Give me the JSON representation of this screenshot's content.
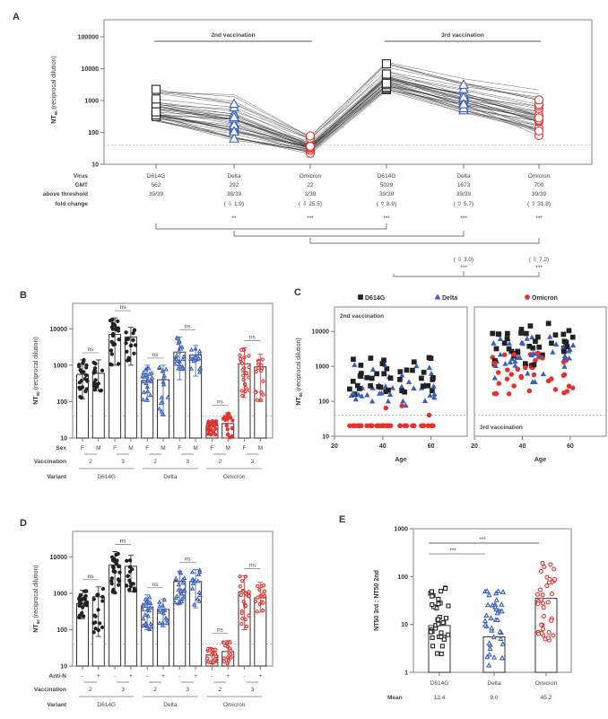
{
  "colors": {
    "D614G": "#222222",
    "Delta": "#3b5fc0",
    "Omicron": "#e8312f",
    "fold_up": "#c0267a",
    "threshold": "#bbbbbb"
  },
  "chart_data": [
    {
      "panel": "A",
      "type": "line",
      "ylabel": "NT50 (reciprocal dilution)",
      "yscale": "log",
      "ylim": [
        10,
        100000
      ],
      "yticks": [
        "10",
        "100",
        "1000",
        "10000",
        "100000"
      ],
      "threshold": 40,
      "groups": [
        {
          "label": "2nd vaccination",
          "columns": [
            0,
            1,
            2
          ]
        },
        {
          "label": "3rd vaccination",
          "columns": [
            3,
            4,
            5
          ]
        }
      ],
      "row_labels": [
        "Virus",
        "GMT",
        "above threshold",
        "fold change"
      ],
      "columns": [
        {
          "virus": "D614G",
          "gmt": "562",
          "above": "39/39",
          "fold": "",
          "fold_dir": "",
          "marker": "square",
          "color_key": "D614G",
          "range": [
            150,
            3000
          ]
        },
        {
          "virus": "Delta",
          "gmt": "292",
          "above": "38/39",
          "fold": "( ⇩ 1.9)",
          "fold_dir": "down",
          "marker": "triangle",
          "color_key": "Delta",
          "range": [
            40,
            2000
          ]
        },
        {
          "virus": "Omicron",
          "gmt": "22",
          "above": "3/39",
          "fold": "( ⇩ 25.5)",
          "fold_dir": "down",
          "marker": "circle",
          "color_key": "Omicron",
          "range": [
            20,
            90
          ]
        },
        {
          "virus": "D614G",
          "gmt": "5029",
          "above": "39/39",
          "fold": "( ⇧ 8.9)",
          "fold_dir": "up",
          "marker": "square",
          "color_key": "D614G",
          "range": [
            1500,
            20000
          ]
        },
        {
          "virus": "Delta",
          "gmt": "1673",
          "above": "39/39",
          "fold": "( ⇧ 5.7)",
          "fold_dir": "up",
          "marker": "triangle",
          "color_key": "Delta",
          "range": [
            350,
            6000
          ]
        },
        {
          "virus": "Omicron",
          "gmt": "700",
          "above": "39/39",
          "fold": "( ⇧ 31.8)",
          "fold_dir": "up",
          "marker": "circle",
          "color_key": "Omicron",
          "range": [
            55,
            4000
          ]
        }
      ],
      "comparisons": [
        {
          "from": 0,
          "to": 3,
          "sig": "***"
        },
        {
          "from": 0,
          "to": 1,
          "sig": "**"
        },
        {
          "from": 1,
          "to": 4,
          "sig": "***"
        },
        {
          "from": 2,
          "to": 5,
          "sig": "***"
        },
        {
          "from": 0,
          "to": 2,
          "sig": "***"
        }
      ],
      "third_dose_comparisons": [
        {
          "column": 4,
          "fold": "( ⇩ 3.0)",
          "sig": "***"
        },
        {
          "column": 5,
          "fold": "( ⇩ 7.2)",
          "sig": "***"
        }
      ]
    },
    {
      "panel": "B",
      "type": "bar",
      "ylabel": "NT50 (reciprocal dilution)",
      "yscale": "log",
      "ylim": [
        10,
        50000
      ],
      "yticks": [
        "10",
        "100",
        "1000",
        "10000"
      ],
      "threshold": 40,
      "row_labels": [
        "Sex",
        "Vaccination",
        "Variant"
      ],
      "categories": [
        "F",
        "M",
        "F",
        "M",
        "F",
        "M",
        "F",
        "M",
        "F",
        "M",
        "F",
        "M"
      ],
      "vaccination": [
        "2",
        "3",
        "2",
        "3",
        "2",
        "3"
      ],
      "variants": [
        "D614G",
        "Delta",
        "Omicron"
      ],
      "bar_values": [
        560,
        600,
        7000,
        6000,
        380,
        400,
        2300,
        1900,
        22,
        25,
        1100,
        900
      ],
      "err_low": [
        120,
        200,
        1000,
        1000,
        100,
        40,
        400,
        500,
        12,
        10,
        130,
        100
      ],
      "err_high": [
        1400,
        1400,
        20000,
        11000,
        1000,
        1000,
        6000,
        3500,
        30,
        50,
        3000,
        2000
      ],
      "ns_labels": [
        "ns",
        "ns",
        "ns",
        "ns",
        "ns",
        "ns"
      ]
    },
    {
      "panel": "C",
      "type": "scatter",
      "ylabel": "NT50 (reciprocal dilution)",
      "xlabel": "Age",
      "yscale": "log",
      "ylim": [
        10,
        50000
      ],
      "xlim": [
        20,
        75
      ],
      "xticks": [
        "20",
        "40",
        "60"
      ],
      "yticks": [
        "10",
        "100",
        "1000",
        "10000"
      ],
      "threshold": 40,
      "legend": [
        "D614G",
        "Delta",
        "Omicron"
      ],
      "legend_position": "top",
      "subpanels": [
        {
          "label": "2nd vaccination",
          "label_position": "top-left"
        },
        {
          "label": "3rd vaccination",
          "label_position": "bottom-left"
        }
      ]
    },
    {
      "panel": "D",
      "type": "bar",
      "ylabel": "NT50 (reciprocal dilution)",
      "yscale": "log",
      "ylim": [
        10,
        50000
      ],
      "yticks": [
        "10",
        "100",
        "1000",
        "10000"
      ],
      "threshold": 40,
      "row_labels": [
        "Anti-N",
        "Vaccination",
        "Variant"
      ],
      "categories": [
        "-",
        "+",
        "-",
        "+",
        "-",
        "+",
        "-",
        "+",
        "-",
        "+",
        "-",
        "+"
      ],
      "vaccination": [
        "2",
        "3",
        "2",
        "3",
        "2",
        "3"
      ],
      "variants": [
        "D614G",
        "Delta",
        "Omicron"
      ],
      "bar_values": [
        520,
        800,
        6000,
        5500,
        420,
        360,
        2100,
        2100,
        20,
        25,
        1100,
        750
      ],
      "err_low": [
        200,
        65,
        1000,
        1100,
        100,
        120,
        500,
        400,
        12,
        10,
        100,
        300
      ],
      "err_high": [
        1200,
        1500,
        14000,
        11000,
        900,
        700,
        4000,
        4500,
        30,
        50,
        3000,
        2000
      ],
      "ns_labels": [
        "ns",
        "ns",
        "ns",
        "ns",
        "ns",
        "ns"
      ]
    },
    {
      "panel": "E",
      "type": "bar",
      "ylabel": "NT50 3rd : NT50 2nd",
      "yscale": "log",
      "ylim": [
        1,
        1000
      ],
      "yticks": [
        "1",
        "10",
        "100",
        "1000"
      ],
      "categories": [
        "D614G",
        "Delta",
        "Omicron"
      ],
      "bar_values": [
        9.5,
        5.5,
        35
      ],
      "mean_label": "Mean",
      "means": [
        "12.4",
        "9.0",
        "45.2"
      ],
      "comparisons": [
        {
          "from": 0,
          "to": 1,
          "sig": "***"
        },
        {
          "from": 0,
          "to": 2,
          "sig": "***"
        }
      ]
    }
  ]
}
